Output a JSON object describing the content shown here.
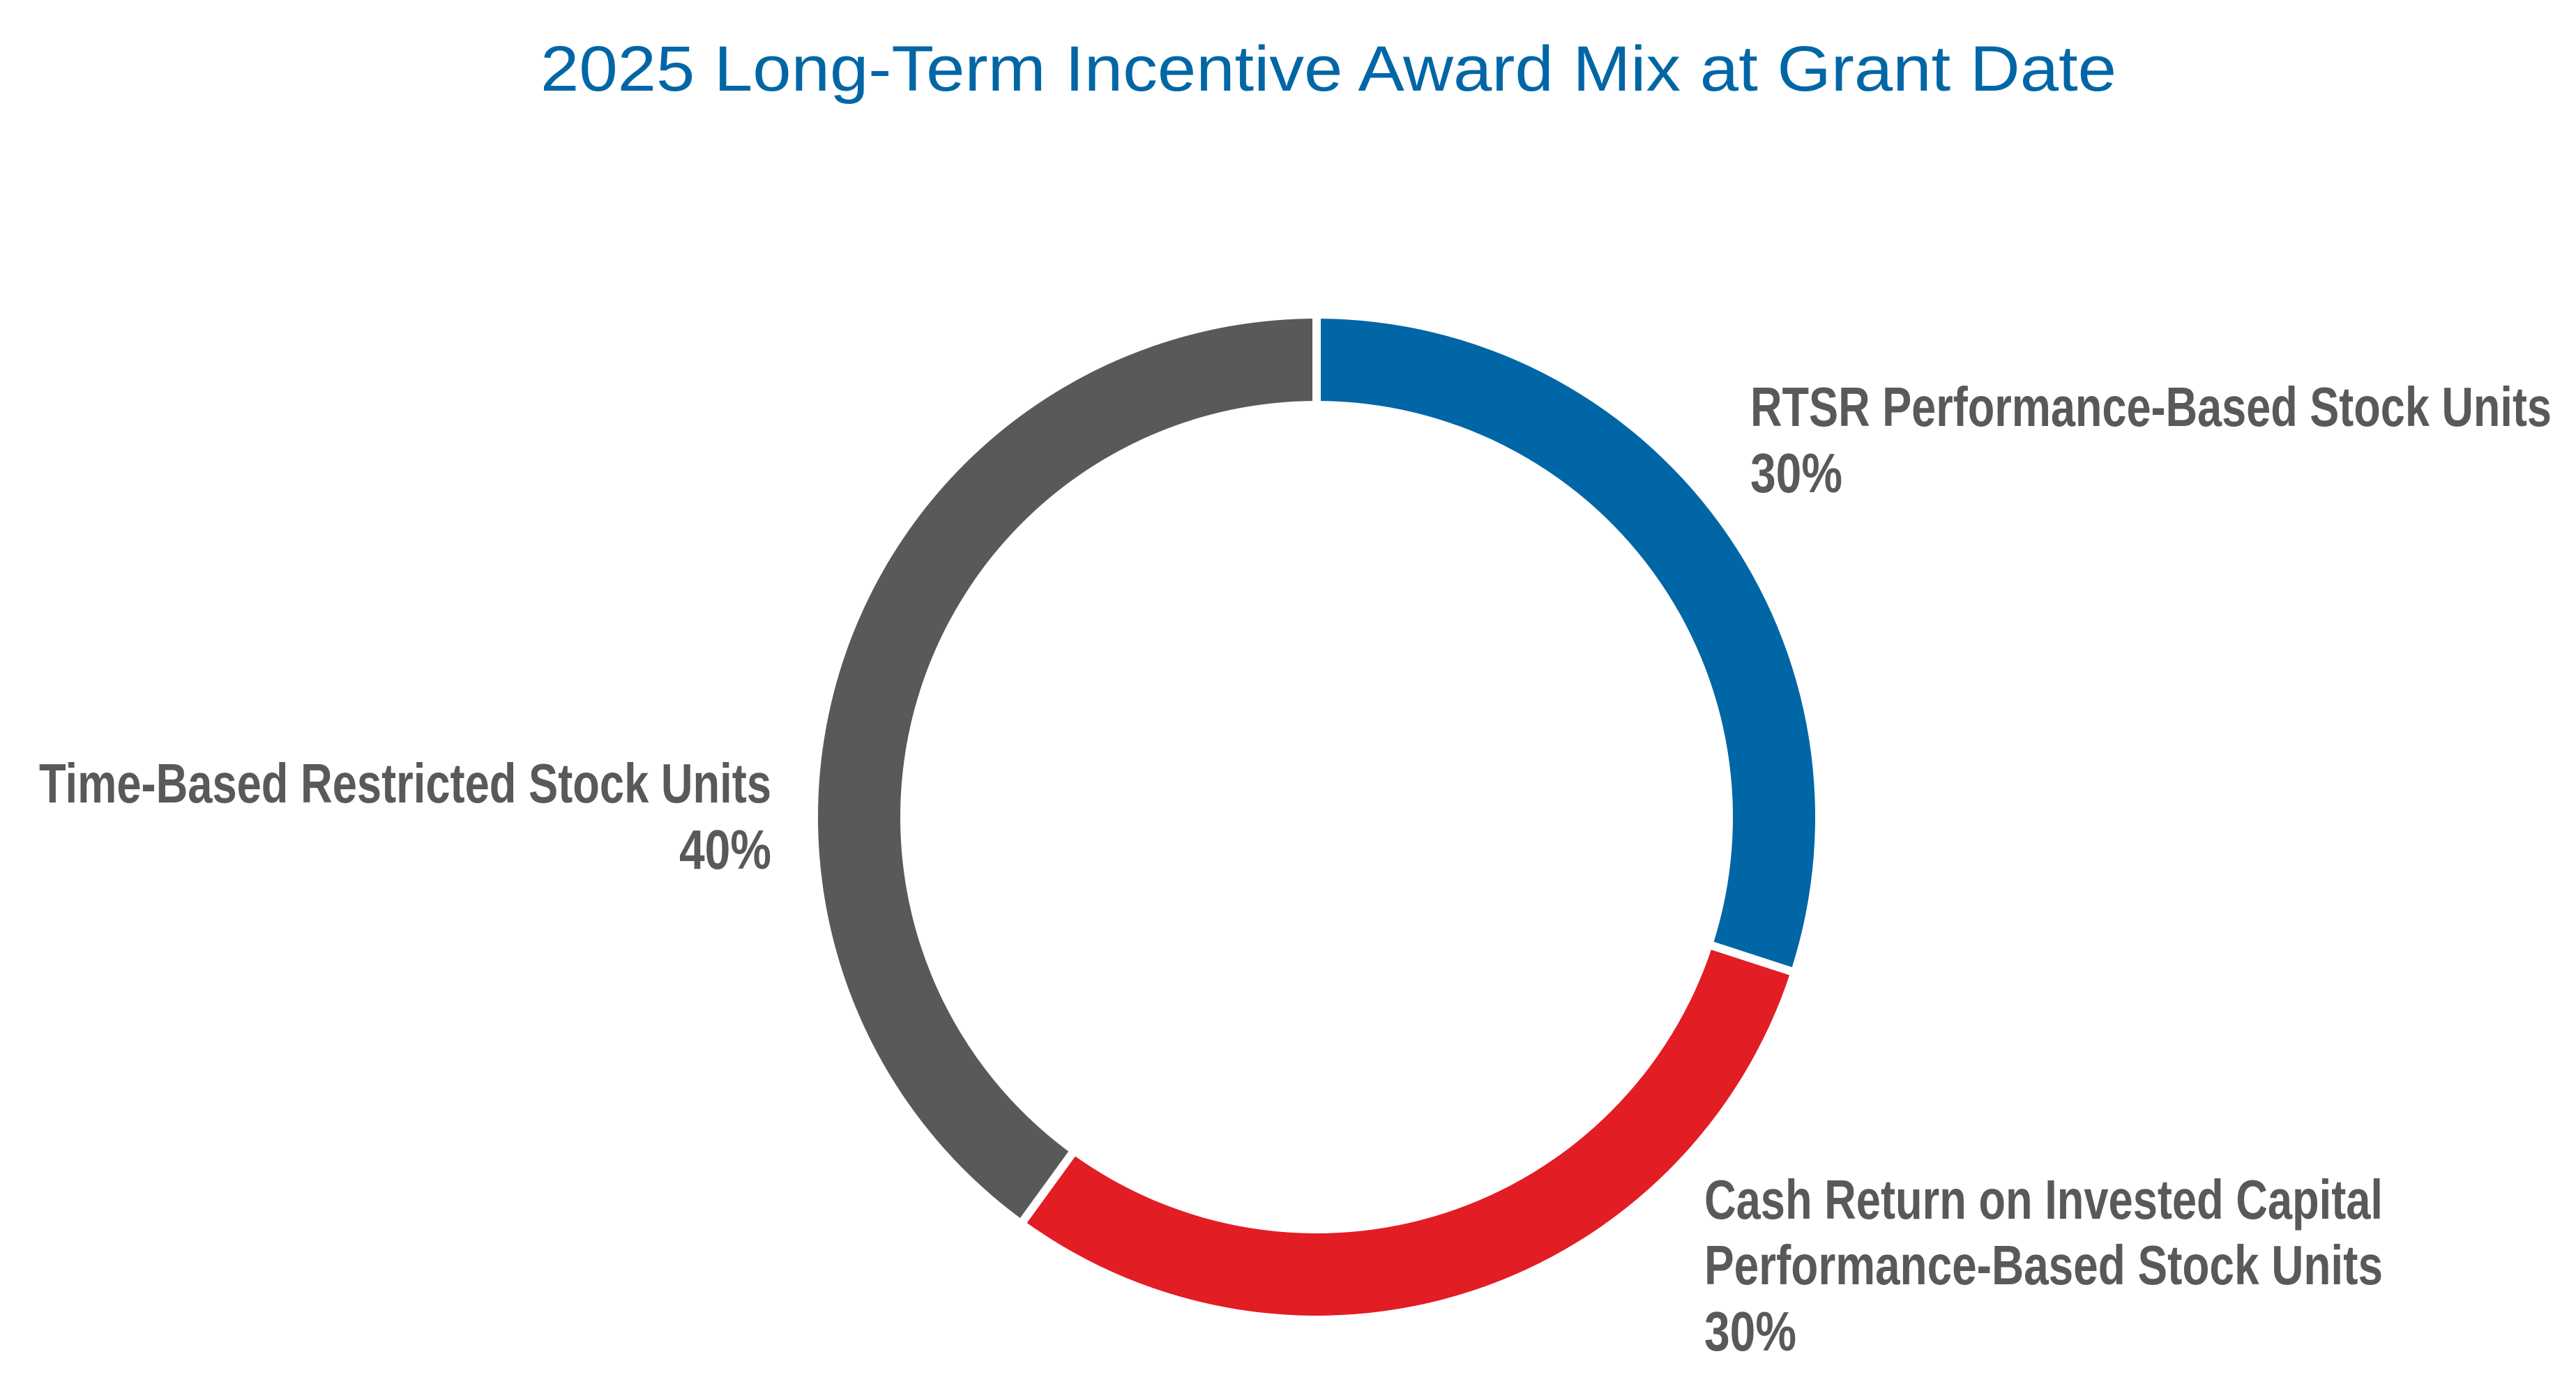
{
  "chart_data": {
    "type": "pie",
    "variant": "donut",
    "title": "2025 Long-Term Incentive Award Mix at Grant Date",
    "start_angle": "top, clockwise",
    "slices": [
      {
        "label_lines": [
          "RTSR Performance-Based Stock Units"
        ],
        "value": 30,
        "value_label": "30%",
        "color": "#0066A6"
      },
      {
        "label_lines": [
          "Cash Return on Invested Capital",
          "Performance-Based Stock Units"
        ],
        "value": 30,
        "value_label": "30%",
        "color": "#E21D24"
      },
      {
        "label_lines": [
          "Time-Based Restricted Stock Units"
        ],
        "value": 40,
        "value_label": "40%",
        "color": "#58595B"
      }
    ],
    "title_color": "#0066A6",
    "label_color": "#58595B"
  }
}
